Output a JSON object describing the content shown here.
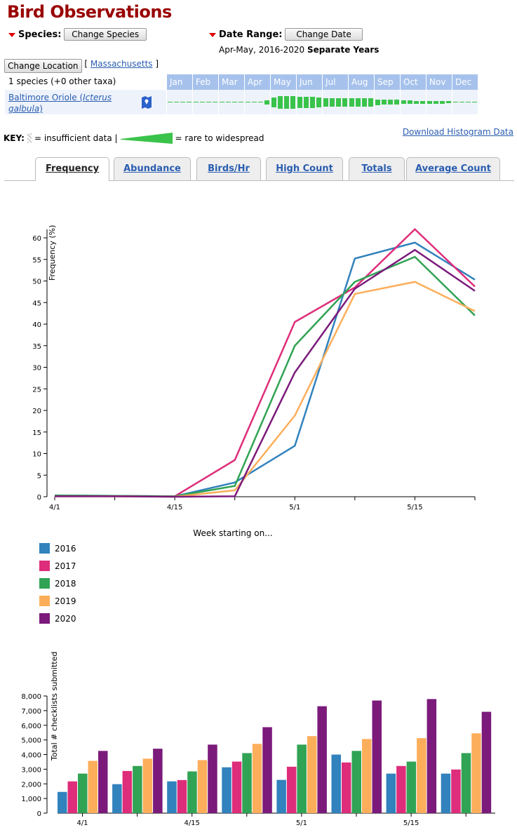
{
  "title": "Bird Observations",
  "species": {
    "label": "Species:",
    "button": "Change Species"
  },
  "date": {
    "label": "Date Range:",
    "button": "Change Date",
    "range": "Apr-May, 2016-2020",
    "mode": "Separate Years"
  },
  "location": {
    "button": "Change Location",
    "open": "[",
    "name": "Massachusetts",
    "close": "]"
  },
  "histogram": {
    "count": "1 species (+0 other taxa)",
    "months": [
      "Jan",
      "Feb",
      "Mar",
      "Apr",
      "May",
      "Jun",
      "Jul",
      "Aug",
      "Sep",
      "Oct",
      "Nov",
      "Dec"
    ],
    "species_common": "Baltimore Oriole (",
    "species_sci": "Icterus galbula",
    "species_close": ")",
    "map_icon": "map-pin-icon",
    "levels": [
      1,
      1,
      1,
      1,
      1,
      1,
      1,
      1,
      1,
      1,
      1,
      1,
      1,
      1,
      1,
      6,
      14,
      18,
      18,
      18,
      16,
      16,
      16,
      14,
      12,
      12,
      12,
      12,
      12,
      12,
      12,
      12,
      8,
      7,
      7,
      7,
      5,
      5,
      4,
      4,
      4,
      4,
      4,
      3,
      1,
      1,
      1,
      1
    ],
    "color": "#3ac34b"
  },
  "key": {
    "label": "KEY:",
    "insufficient": "= insufficient data |",
    "rare": "= rare to widespread",
    "download": "Download Histogram Data"
  },
  "tabs": [
    {
      "label": "Frequency",
      "active": true
    },
    {
      "label": "Abundance"
    },
    {
      "label": "Birds/Hr"
    },
    {
      "label": "High Count"
    },
    {
      "label": "Totals"
    },
    {
      "label": "Average Count"
    }
  ],
  "chart_data": [
    {
      "type": "line",
      "ylabel": "Frequency (%)",
      "xlabel": "Week starting on...",
      "ylim": [
        0,
        62
      ],
      "yticks": [
        0,
        5,
        10,
        15,
        20,
        25,
        30,
        35,
        40,
        45,
        50,
        55,
        60
      ],
      "x": [
        "4/1",
        "4/8",
        "4/15",
        "4/22",
        "5/1",
        "5/8",
        "5/15",
        "5/22"
      ],
      "xtick_labels": [
        "4/1",
        "",
        "4/15",
        "",
        "5/1",
        "",
        "5/15",
        ""
      ],
      "series": [
        {
          "name": "2016",
          "color": "#3182bd",
          "values": [
            0.3,
            0.2,
            0.1,
            3.3,
            11.8,
            55.2,
            58.9,
            50.3
          ]
        },
        {
          "name": "2017",
          "color": "#de2d7a",
          "values": [
            0.2,
            0.1,
            0.1,
            8.5,
            40.5,
            48.5,
            62.0,
            48.7
          ]
        },
        {
          "name": "2018",
          "color": "#31a354",
          "values": [
            0.3,
            0.2,
            0.1,
            2.5,
            35.0,
            49.8,
            55.6,
            42.0
          ]
        },
        {
          "name": "2019",
          "color": "#fdae5b",
          "values": [
            0.1,
            0.1,
            0.0,
            1.5,
            18.8,
            47.0,
            49.8,
            43.0
          ]
        },
        {
          "name": "2020",
          "color": "#7b1a7b",
          "values": [
            0.1,
            0.1,
            0.0,
            0.1,
            28.8,
            48.2,
            57.2,
            47.7
          ]
        }
      ]
    },
    {
      "type": "bar",
      "ylabel": "Total # checklists submitted",
      "ylim": [
        0,
        8000
      ],
      "yticks": [
        "0",
        "1,000",
        "2,000",
        "3,000",
        "4,000",
        "5,000",
        "6,000",
        "7,000",
        "8,000"
      ],
      "categories": [
        "4/1",
        "4/8",
        "4/15",
        "4/22",
        "5/1",
        "5/8",
        "5/15",
        "5/22"
      ],
      "xtick_labels": [
        "4/1",
        "",
        "4/15",
        "",
        "5/1",
        "",
        "5/15",
        ""
      ],
      "series": [
        {
          "name": "2016",
          "values": [
            1450,
            1980,
            2170,
            3130,
            2270,
            4000,
            2700,
            2700
          ]
        },
        {
          "name": "2017",
          "values": [
            2170,
            2880,
            2260,
            3520,
            3170,
            3460,
            3220,
            2980
          ]
        },
        {
          "name": "2018",
          "values": [
            2700,
            3220,
            2850,
            4100,
            4680,
            4250,
            3520,
            4100
          ]
        },
        {
          "name": "2019",
          "values": [
            3570,
            3720,
            3620,
            4730,
            5260,
            5060,
            5120,
            5450
          ]
        },
        {
          "name": "2020",
          "values": [
            4250,
            4400,
            4680,
            5870,
            7300,
            7690,
            7790,
            6920
          ]
        }
      ]
    }
  ]
}
